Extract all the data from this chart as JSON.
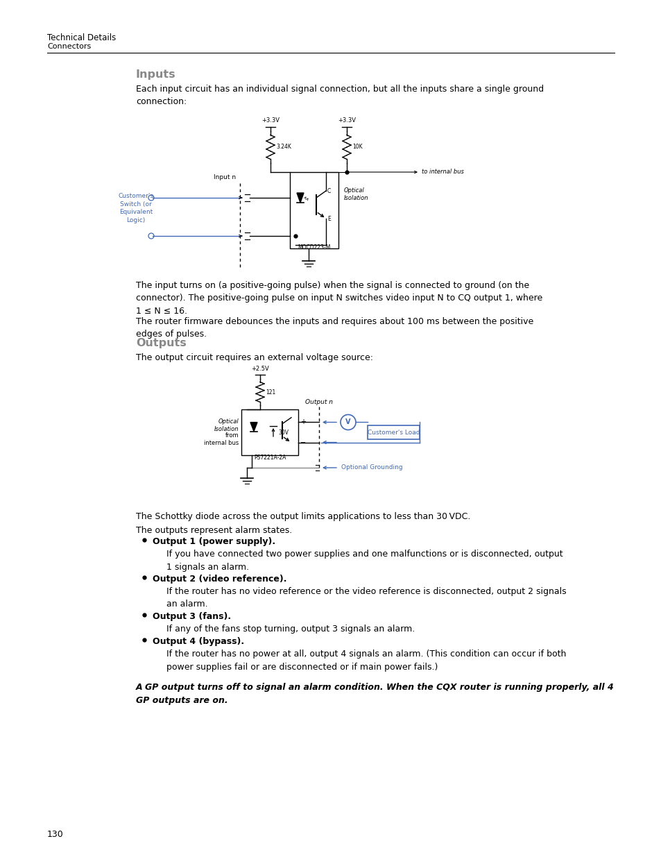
{
  "bg_color": "#ffffff",
  "header_line1": "Technical Details",
  "header_line2": "Connectors",
  "page_number": "130",
  "inputs_heading": "Inputs",
  "inputs_para1": "Each input circuit has an individual signal connection, but all the inputs share a single ground\nconnection:",
  "inputs_body1": "The input turns on (a positive-going pulse) when the signal is connected to ground (on the\nconnector). The positive-going pulse on input N switches video input N to CQ output 1, where\n1 ≤ N ≤ 16.",
  "inputs_body2": "The router firmware debounces the inputs and requires about 100 ms between the positive\nedges of pulses.",
  "outputs_heading": "Outputs",
  "outputs_para1": "The output circuit requires an external voltage source:",
  "outputs_body1": "The Schottky diode across the output limits applications to less than 30 VDC.",
  "outputs_body2": "The outputs represent alarm states.",
  "bullet1_bold": "Output 1 (power supply).",
  "bullet1_text": "If you have connected two power supplies and one malfunctions or is disconnected, output\n1 signals an alarm.",
  "bullet2_bold": "Output 2 (video reference).",
  "bullet2_text": "If the router has no video reference or the video reference is disconnected, output 2 signals\nan alarm.",
  "bullet3_bold": "Output 3 (fans).",
  "bullet3_text": "If any of the fans stop turning, output 3 signals an alarm.",
  "bullet4_bold": "Output 4 (bypass).",
  "bullet4_text": "If the router has no power at all, output 4 signals an alarm. (This condition can occur if both\npower supplies fail or are disconnected or if main power fails.)",
  "final_bold": "A GP output turns off to signal an alarm condition. When the CQX router is running properly, all 4\nGP outputs are on.",
  "blue_color": "#4169b8",
  "black_color": "#000000",
  "gray_color": "#888888",
  "heading_color": "#888888"
}
